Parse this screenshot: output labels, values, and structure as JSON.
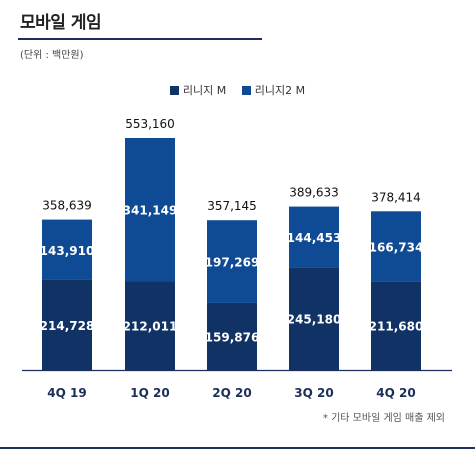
{
  "header": {
    "title": "모바일 게임",
    "unit": "(단위 : 백만원)"
  },
  "footnote": "* 기타 모바일 게임 매출 제외",
  "chart_data": {
    "type": "bar",
    "stacked": true,
    "categories": [
      "4Q 19",
      "1Q 20",
      "2Q 20",
      "3Q 20",
      "4Q 20"
    ],
    "series": [
      {
        "name": "리니지 M",
        "color": "#103265",
        "values": [
          214728,
          212011,
          159876,
          245180,
          211680
        ]
      },
      {
        "name": "리니지2 M",
        "color": "#0f4b94",
        "values": [
          143910,
          341149,
          197269,
          144453,
          166734
        ]
      }
    ],
    "totals": [
      358639,
      553160,
      357145,
      389633,
      378414
    ],
    "value_labels": {
      "series": [
        [
          "214,728",
          "212,011",
          "159,876",
          "245,180",
          "211,680"
        ],
        [
          "143,910",
          "341,149",
          "197,269",
          "144,453",
          "166,734"
        ]
      ],
      "totals": [
        "358,639",
        "553,160",
        "357,145",
        "389,633",
        "378,414"
      ]
    },
    "legend_position": "top-center",
    "grid": false
  }
}
